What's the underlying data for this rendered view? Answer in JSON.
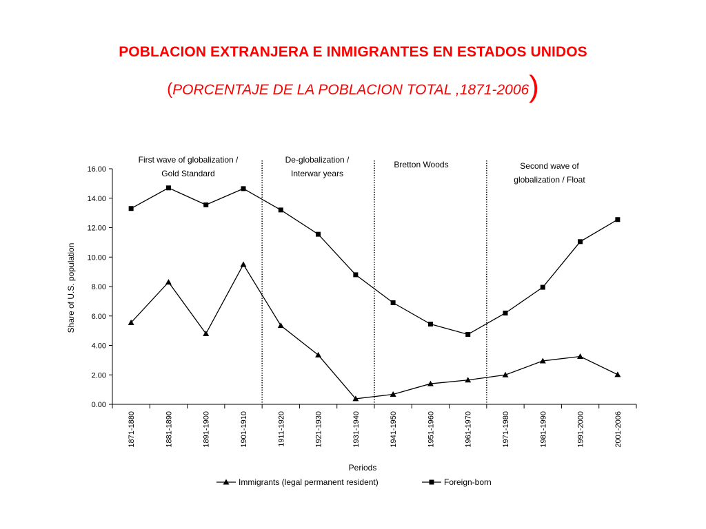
{
  "page": {
    "title": "POBLACION EXTRANJERA E INMIGRANTES  EN ESTADOS UNIDOS",
    "subtitle_open": "(",
    "subtitle_text": "PORCENTAJE DE LA POBLACION TOTAL ,1871-2006",
    "subtitle_close": ")"
  },
  "colors": {
    "title": "#ff0000",
    "ink": "#000000"
  },
  "chart_data": {
    "type": "line",
    "xlabel": "Periods",
    "ylabel": "Share of U.S. population",
    "ylim": [
      0,
      16
    ],
    "yticks": [
      "0.00",
      "2.00",
      "4.00",
      "6.00",
      "8.00",
      "10.00",
      "12.00",
      "14.00",
      "16.00"
    ],
    "grid": false,
    "legend_position": "bottom",
    "categories": [
      "1871-1880",
      "1881-1890",
      "1891-1900",
      "1901-1910",
      "1911-1920",
      "1921-1930",
      "1931-1940",
      "1941-1950",
      "1951-1960",
      "1961-1970",
      "1971-1980",
      "1981-1990",
      "1991-2000",
      "2001-2006"
    ],
    "series": [
      {
        "name": "Immigrants (legal permanent resident)",
        "marker": "triangle",
        "values": [
          5.55,
          8.3,
          4.8,
          9.5,
          5.35,
          3.35,
          0.38,
          0.68,
          1.4,
          1.65,
          2.0,
          2.95,
          3.25,
          2.02
        ]
      },
      {
        "name": "Foreign-born",
        "marker": "square",
        "values": [
          13.3,
          14.7,
          13.55,
          14.65,
          13.2,
          11.55,
          8.8,
          6.9,
          5.45,
          4.75,
          6.2,
          7.95,
          11.05,
          12.55
        ]
      }
    ],
    "periods": [
      {
        "label_lines": [
          "First wave of globalization /",
          "Gold Standard"
        ],
        "divider_after_index": 3
      },
      {
        "label_lines": [
          "De-globalization /",
          "Interwar years"
        ],
        "divider_after_index": 6
      },
      {
        "label_lines": [
          "Bretton Woods"
        ],
        "divider_after_index": 9
      },
      {
        "label_lines": [
          "Second wave of",
          "globalization / Float"
        ],
        "divider_after_index": null
      }
    ]
  }
}
